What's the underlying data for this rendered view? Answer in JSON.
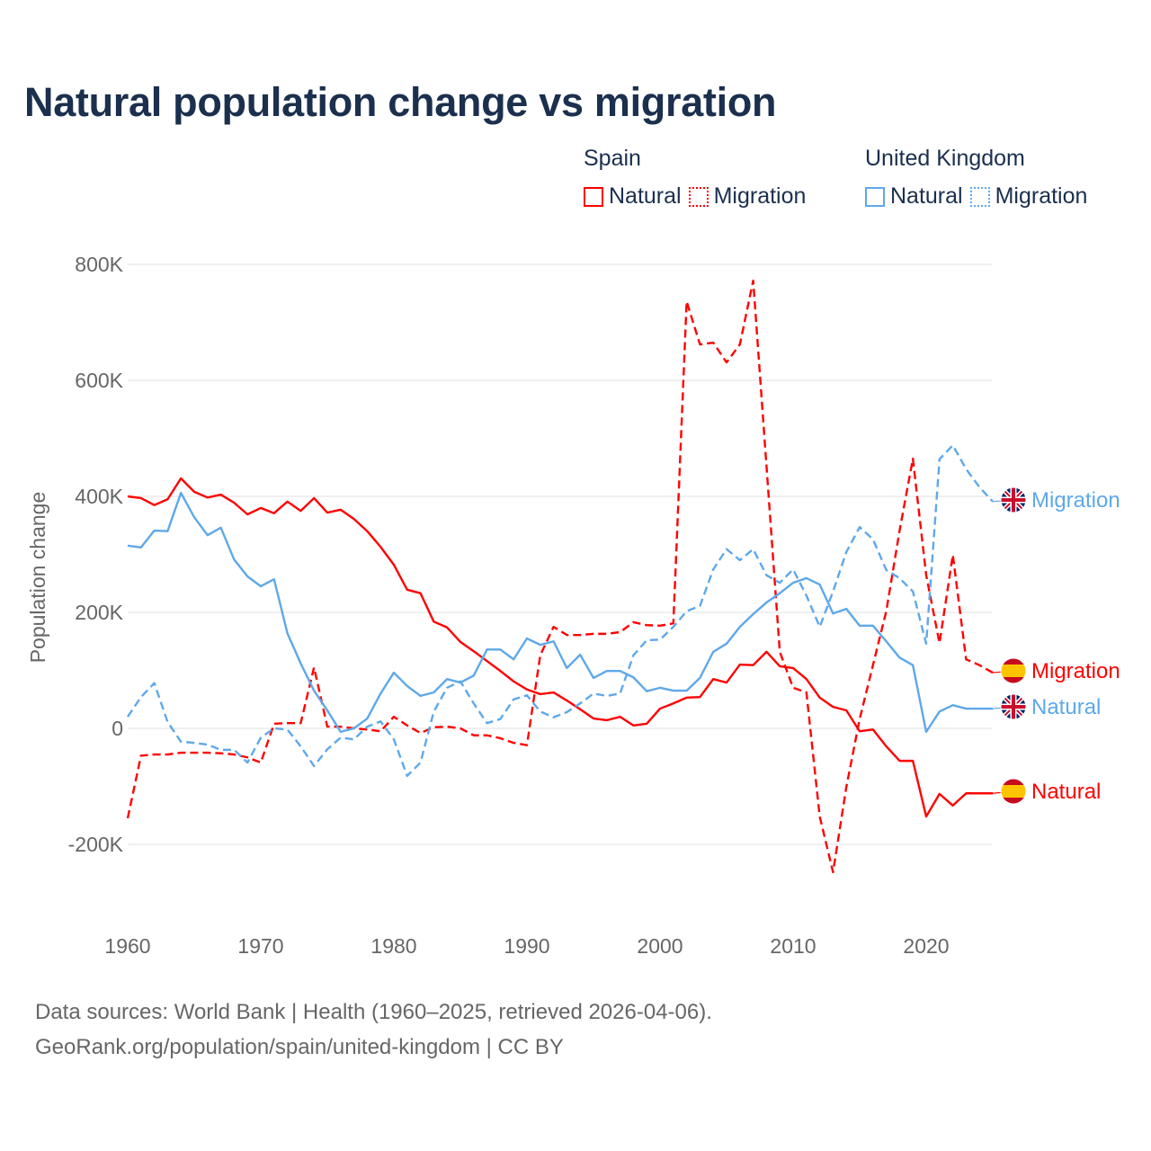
{
  "title": "Natural population change vs migration",
  "legend": {
    "groups": [
      {
        "name": "Spain",
        "color": "#ff0000",
        "items": [
          "Natural",
          "Migration"
        ]
      },
      {
        "name": "United Kingdom",
        "color": "#5ea8ea",
        "items": [
          "Natural",
          "Migration"
        ]
      }
    ]
  },
  "footer": {
    "line1": "Data sources: World Bank | Health (1960–2025, retrieved 2026-04-06).",
    "line2": "GeoRank.org/population/spain/united-kingdom | CC BY"
  },
  "chart_data": {
    "type": "line",
    "title": "Natural population change vs migration",
    "xlabel": "",
    "ylabel": "Population change",
    "xlim": [
      1960,
      2025
    ],
    "ylim": [
      -300000,
      800000
    ],
    "x_ticks": [
      1960,
      1970,
      1980,
      1990,
      2000,
      2010,
      2020
    ],
    "x_tick_labels": [
      "1960",
      "1970",
      "1980",
      "1990",
      "2000",
      "2010",
      "2020"
    ],
    "y_ticks": [
      -200000,
      0,
      200000,
      400000,
      600000,
      800000
    ],
    "y_tick_labels": [
      "-200K",
      "0",
      "200K",
      "400K",
      "600K",
      "800K"
    ],
    "grid": true,
    "legend_placement": "top-right",
    "x_start": 1960,
    "unit": "thousands",
    "series": [
      {
        "name": "Spain Natural",
        "country": "Spain",
        "kind": "Natural",
        "color": "#ff0000",
        "dash": false,
        "end_label": "Natural",
        "values": [
          400,
          397,
          385,
          395,
          431,
          408,
          398,
          403,
          389,
          369,
          380,
          371,
          391,
          375,
          397,
          372,
          377,
          361,
          340,
          313,
          282,
          239,
          233,
          184,
          174,
          149,
          133,
          116,
          99,
          81,
          67,
          59,
          62,
          48,
          33,
          17,
          14,
          20,
          5,
          8,
          34,
          43,
          53,
          54,
          85,
          79,
          110,
          109,
          132,
          107,
          104,
          85,
          53,
          37,
          31,
          -5,
          -2,
          -31,
          -56,
          -56,
          -152,
          -113,
          -133,
          -112,
          -112,
          -112
        ]
      },
      {
        "name": "Spain Migration",
        "country": "Spain",
        "kind": "Migration",
        "color": "#ff0000",
        "dash": true,
        "end_label": "Migration",
        "values": [
          -155,
          -47,
          -45,
          -45,
          -42,
          -42,
          -42,
          -43,
          -45,
          -50,
          -59,
          8,
          9,
          9,
          105,
          3,
          3,
          0,
          -2,
          -5,
          20,
          5,
          -8,
          2,
          3,
          0,
          -12,
          -12,
          -17,
          -25,
          -29,
          126,
          175,
          161,
          161,
          163,
          163,
          166,
          183,
          178,
          177,
          181,
          736,
          662,
          665,
          631,
          662,
          772,
          452,
          132,
          70,
          62,
          -152,
          -248,
          -101,
          16,
          109,
          202,
          341,
          465,
          264,
          147,
          299,
          119,
          109,
          96
        ]
      },
      {
        "name": "United Kingdom Natural",
        "country": "United Kingdom",
        "kind": "Natural",
        "color": "#5ea8ea",
        "dash": false,
        "end_label": "Natural",
        "values": [
          315,
          312,
          341,
          340,
          406,
          364,
          333,
          346,
          291,
          262,
          245,
          257,
          164,
          112,
          65,
          31,
          -6,
          0,
          17,
          60,
          96,
          73,
          56,
          62,
          85,
          79,
          91,
          136,
          136,
          119,
          155,
          144,
          150,
          104,
          127,
          87,
          99,
          99,
          88,
          64,
          70,
          65,
          65,
          87,
          132,
          146,
          175,
          197,
          217,
          233,
          251,
          259,
          248,
          198,
          206,
          177,
          177,
          150,
          122,
          109,
          -6,
          29,
          40,
          34,
          34,
          34
        ]
      },
      {
        "name": "United Kingdom Migration",
        "country": "United Kingdom",
        "kind": "Migration",
        "color": "#5ea8ea",
        "dash": true,
        "end_label": "Migration",
        "values": [
          20,
          54,
          78,
          11,
          -23,
          -25,
          -28,
          -37,
          -37,
          -59,
          -16,
          0,
          -2,
          -31,
          -65,
          -36,
          -16,
          -19,
          3,
          12,
          -19,
          -82,
          -59,
          29,
          70,
          81,
          43,
          9,
          16,
          50,
          57,
          29,
          19,
          28,
          43,
          60,
          56,
          60,
          126,
          152,
          153,
          175,
          202,
          211,
          274,
          309,
          290,
          309,
          264,
          251,
          274,
          229,
          175,
          236,
          304,
          347,
          326,
          273,
          259,
          236,
          146,
          464,
          488,
          447,
          416,
          391
        ]
      }
    ]
  }
}
